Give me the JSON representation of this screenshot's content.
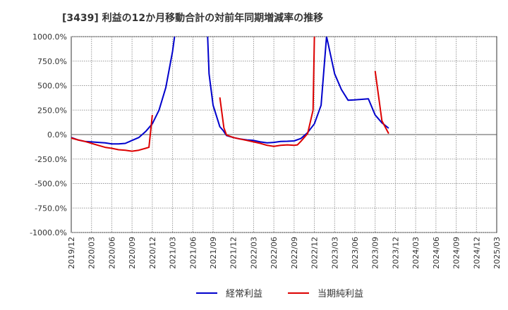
{
  "chart_data": {
    "type": "line",
    "title": "[3439]  利益の12か月移動合計の対前年同期増減率の推移",
    "xlabel": "",
    "ylabel": "",
    "ylim": [
      -1000,
      1000
    ],
    "yticks": [
      1000,
      750,
      500,
      250,
      0,
      -250,
      -500,
      -750,
      -1000
    ],
    "yticklabels": [
      "1000.0%",
      "750.0%",
      "500.0%",
      "250.0%",
      "0.0%",
      "-250.0%",
      "-500.0%",
      "-750.0%",
      "-1000.0%"
    ],
    "xticklabels": [
      "2019/12",
      "2020/03",
      "2020/06",
      "2020/09",
      "2020/12",
      "2021/03",
      "2021/06",
      "2021/09",
      "2021/12",
      "2022/03",
      "2022/06",
      "2022/09",
      "2022/12",
      "2023/03",
      "2023/06",
      "2023/09",
      "2023/12",
      "2024/03",
      "2024/06",
      "2024/09",
      "2024/12",
      "2025/03"
    ],
    "grid": true,
    "legend_position": "bottom",
    "series": [
      {
        "name": "経常利益",
        "color": "#0000cc",
        "points": [
          [
            0,
            -30
          ],
          [
            1,
            -55
          ],
          [
            2,
            -70
          ],
          [
            3,
            -75
          ],
          [
            4,
            -80
          ],
          [
            5,
            -85
          ],
          [
            6,
            -95
          ],
          [
            7,
            -95
          ],
          [
            8,
            -90
          ],
          [
            9,
            -60
          ],
          [
            10,
            -30
          ],
          [
            11,
            30
          ],
          [
            12,
            110
          ],
          [
            13,
            250
          ],
          [
            14,
            480
          ],
          [
            15,
            850
          ],
          [
            15.3,
            1000
          ],
          null,
          [
            20.2,
            1000
          ],
          [
            20.4,
            620
          ],
          [
            21,
            300
          ],
          [
            22,
            80
          ],
          [
            22.5,
            40
          ],
          [
            23,
            -10
          ],
          [
            24,
            -30
          ],
          [
            25,
            -45
          ],
          [
            26,
            -55
          ],
          [
            27,
            -60
          ],
          [
            28,
            -75
          ],
          [
            29,
            -85
          ],
          [
            30,
            -80
          ],
          [
            31,
            -70
          ],
          [
            32,
            -68
          ],
          [
            33,
            -65
          ],
          [
            34,
            -40
          ],
          [
            35,
            20
          ],
          [
            36,
            110
          ],
          [
            37,
            300
          ],
          [
            37.8,
            1000
          ],
          [
            38,
            940
          ],
          [
            39,
            620
          ],
          [
            40,
            460
          ],
          [
            41,
            350
          ],
          [
            42,
            355
          ],
          [
            43,
            360
          ],
          [
            44,
            365
          ],
          [
            45,
            200
          ],
          [
            46,
            120
          ],
          [
            47,
            65
          ]
        ]
      },
      {
        "name": "当期純利益",
        "color": "#dd0000",
        "points": [
          [
            0,
            -35
          ],
          [
            1,
            -55
          ],
          [
            2,
            -70
          ],
          [
            3,
            -90
          ],
          [
            4,
            -110
          ],
          [
            5,
            -130
          ],
          [
            6,
            -140
          ],
          [
            7,
            -155
          ],
          [
            8,
            -160
          ],
          [
            9,
            -170
          ],
          [
            10,
            -160
          ],
          [
            11,
            -140
          ],
          [
            11.5,
            -130
          ],
          [
            12,
            200
          ],
          null,
          [
            22,
            380
          ],
          [
            22.6,
            70
          ],
          [
            23,
            -5
          ],
          [
            24,
            -30
          ],
          [
            25,
            -45
          ],
          [
            26,
            -60
          ],
          [
            27,
            -75
          ],
          [
            28,
            -90
          ],
          [
            29,
            -110
          ],
          [
            30,
            -120
          ],
          [
            31,
            -110
          ],
          [
            32,
            -105
          ],
          [
            33,
            -110
          ],
          [
            33.5,
            -105
          ],
          [
            34,
            -70
          ],
          [
            35,
            10
          ],
          [
            35.8,
            250
          ],
          [
            36,
            1000
          ],
          null,
          [
            45,
            650
          ],
          [
            46,
            140
          ],
          [
            47,
            10
          ]
        ]
      }
    ]
  }
}
